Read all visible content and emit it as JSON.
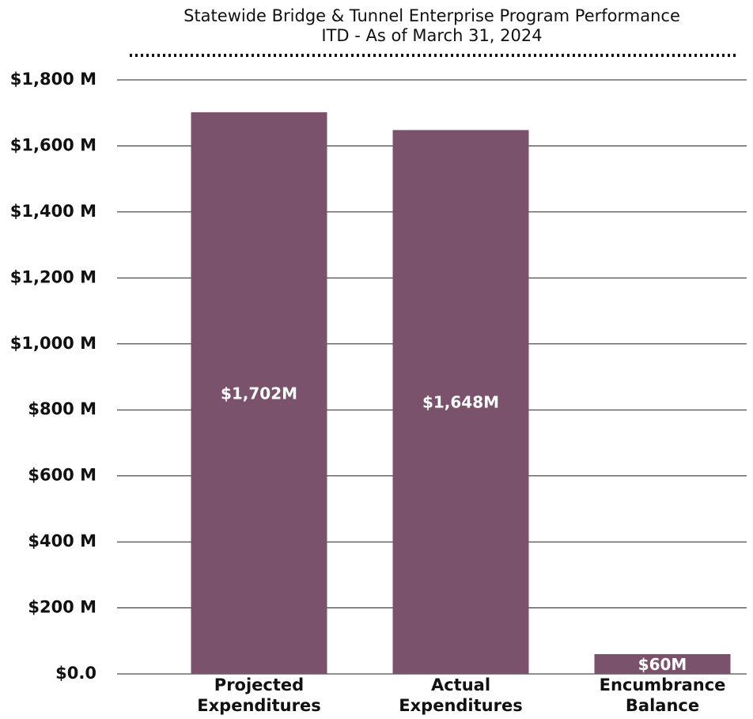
{
  "chart_data": {
    "type": "bar",
    "title": "Statewide Bridge & Tunnel Enterprise Program Performance",
    "subtitle": "ITD - As of  March 31, 2024",
    "categories": [
      "Projected Expenditures",
      "Actual Expenditures",
      "Encumbrance Balance"
    ],
    "values": [
      1702,
      1648,
      60
    ],
    "value_labels": [
      "$1,702M",
      "$1,648M",
      "$60M"
    ],
    "color": "#7b526c",
    "ylim": [
      0,
      1800
    ],
    "yticks": [
      {
        "value": 0,
        "label": "$0.0"
      },
      {
        "value": 200,
        "label": "$200 M"
      },
      {
        "value": 400,
        "label": "$400 M"
      },
      {
        "value": 600,
        "label": "$600 M"
      },
      {
        "value": 800,
        "label": "$800 M"
      },
      {
        "value": 1000,
        "label": "$1,000 M"
      },
      {
        "value": 1200,
        "label": "$1,200 M"
      },
      {
        "value": 1400,
        "label": "$1,400 M"
      },
      {
        "value": 1600,
        "label": "$1,600 M"
      },
      {
        "value": 1800,
        "label": "$1,800 M"
      }
    ],
    "grid": true
  }
}
